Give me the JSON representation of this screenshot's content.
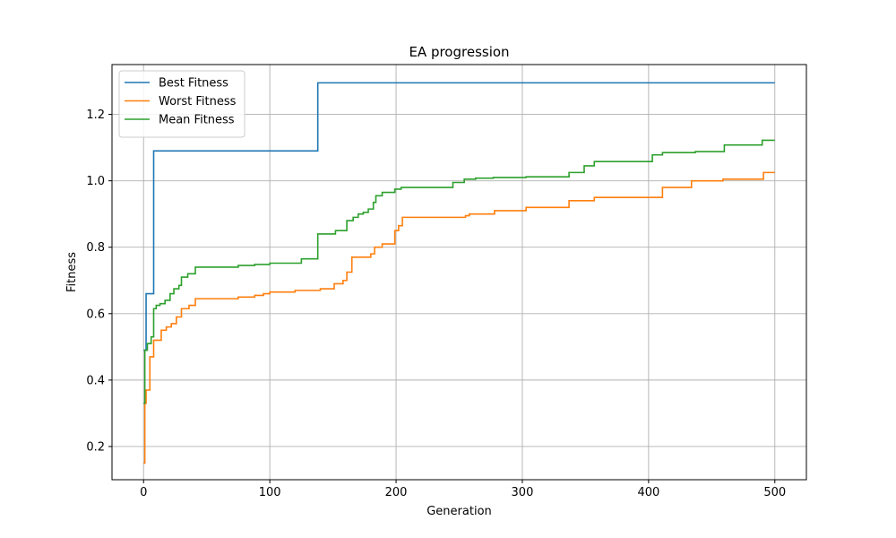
{
  "chart_data": {
    "type": "line",
    "title": "EA progression",
    "xlabel": "Generation",
    "ylabel": "Fitness",
    "xlim": [
      -25,
      525
    ],
    "ylim": [
      0.1,
      1.35
    ],
    "xticks": [
      0,
      100,
      200,
      300,
      400,
      500
    ],
    "yticks": [
      0.2,
      0.4,
      0.6,
      0.8,
      1.0,
      1.2
    ],
    "xtick_labels": [
      "0",
      "100",
      "200",
      "300",
      "400",
      "500"
    ],
    "ytick_labels": [
      "0.2",
      "0.4",
      "0.6",
      "0.8",
      "1.0",
      "1.2"
    ],
    "grid": true,
    "legend_position": "top-left",
    "series": [
      {
        "name": "Best Fitness",
        "color": "#1f77b4",
        "step": true,
        "points": [
          [
            0,
            0.49
          ],
          [
            2,
            0.66
          ],
          [
            7,
            0.66
          ],
          [
            8,
            1.09
          ],
          [
            137,
            1.09
          ],
          [
            138,
            1.295
          ],
          [
            500,
            1.295
          ]
        ]
      },
      {
        "name": "Worst Fitness",
        "color": "#ff7f0e",
        "step": true,
        "points": [
          [
            0,
            0.15
          ],
          [
            1,
            0.33
          ],
          [
            2,
            0.37
          ],
          [
            5,
            0.47
          ],
          [
            8,
            0.52
          ],
          [
            14,
            0.55
          ],
          [
            18,
            0.56
          ],
          [
            22,
            0.57
          ],
          [
            26,
            0.59
          ],
          [
            30,
            0.615
          ],
          [
            36,
            0.625
          ],
          [
            41,
            0.645
          ],
          [
            55,
            0.645
          ],
          [
            75,
            0.65
          ],
          [
            88,
            0.655
          ],
          [
            95,
            0.66
          ],
          [
            100,
            0.665
          ],
          [
            120,
            0.67
          ],
          [
            140,
            0.675
          ],
          [
            151,
            0.69
          ],
          [
            158,
            0.7
          ],
          [
            161,
            0.725
          ],
          [
            165,
            0.77
          ],
          [
            180,
            0.78
          ],
          [
            183,
            0.8
          ],
          [
            189,
            0.81
          ],
          [
            199,
            0.85
          ],
          [
            202,
            0.865
          ],
          [
            205,
            0.89
          ],
          [
            240,
            0.89
          ],
          [
            255,
            0.895
          ],
          [
            258,
            0.9
          ],
          [
            278,
            0.91
          ],
          [
            303,
            0.92
          ],
          [
            337,
            0.94
          ],
          [
            357,
            0.95
          ],
          [
            408,
            0.95
          ],
          [
            411,
            0.98
          ],
          [
            434,
            1.0
          ],
          [
            459,
            1.005
          ],
          [
            491,
            1.025
          ],
          [
            500,
            1.025
          ]
        ]
      },
      {
        "name": "Mean Fitness",
        "color": "#2ca02c",
        "step": true,
        "points": [
          [
            0,
            0.33
          ],
          [
            1,
            0.49
          ],
          [
            3,
            0.51
          ],
          [
            6,
            0.53
          ],
          [
            8,
            0.615
          ],
          [
            10,
            0.625
          ],
          [
            13,
            0.63
          ],
          [
            17,
            0.64
          ],
          [
            21,
            0.66
          ],
          [
            24,
            0.675
          ],
          [
            28,
            0.685
          ],
          [
            30,
            0.71
          ],
          [
            35,
            0.72
          ],
          [
            41,
            0.74
          ],
          [
            60,
            0.74
          ],
          [
            75,
            0.745
          ],
          [
            88,
            0.748
          ],
          [
            100,
            0.752
          ],
          [
            125,
            0.765
          ],
          [
            138,
            0.84
          ],
          [
            152,
            0.85
          ],
          [
            161,
            0.88
          ],
          [
            166,
            0.89
          ],
          [
            170,
            0.9
          ],
          [
            174,
            0.905
          ],
          [
            178,
            0.915
          ],
          [
            182,
            0.935
          ],
          [
            184,
            0.955
          ],
          [
            189,
            0.965
          ],
          [
            199,
            0.975
          ],
          [
            204,
            0.98
          ],
          [
            245,
            0.995
          ],
          [
            254,
            1.005
          ],
          [
            263,
            1.008
          ],
          [
            277,
            1.01
          ],
          [
            303,
            1.012
          ],
          [
            337,
            1.025
          ],
          [
            349,
            1.045
          ],
          [
            357,
            1.058
          ],
          [
            403,
            1.078
          ],
          [
            411,
            1.085
          ],
          [
            437,
            1.088
          ],
          [
            460,
            1.108
          ],
          [
            490,
            1.122
          ],
          [
            500,
            1.122
          ]
        ]
      }
    ]
  }
}
